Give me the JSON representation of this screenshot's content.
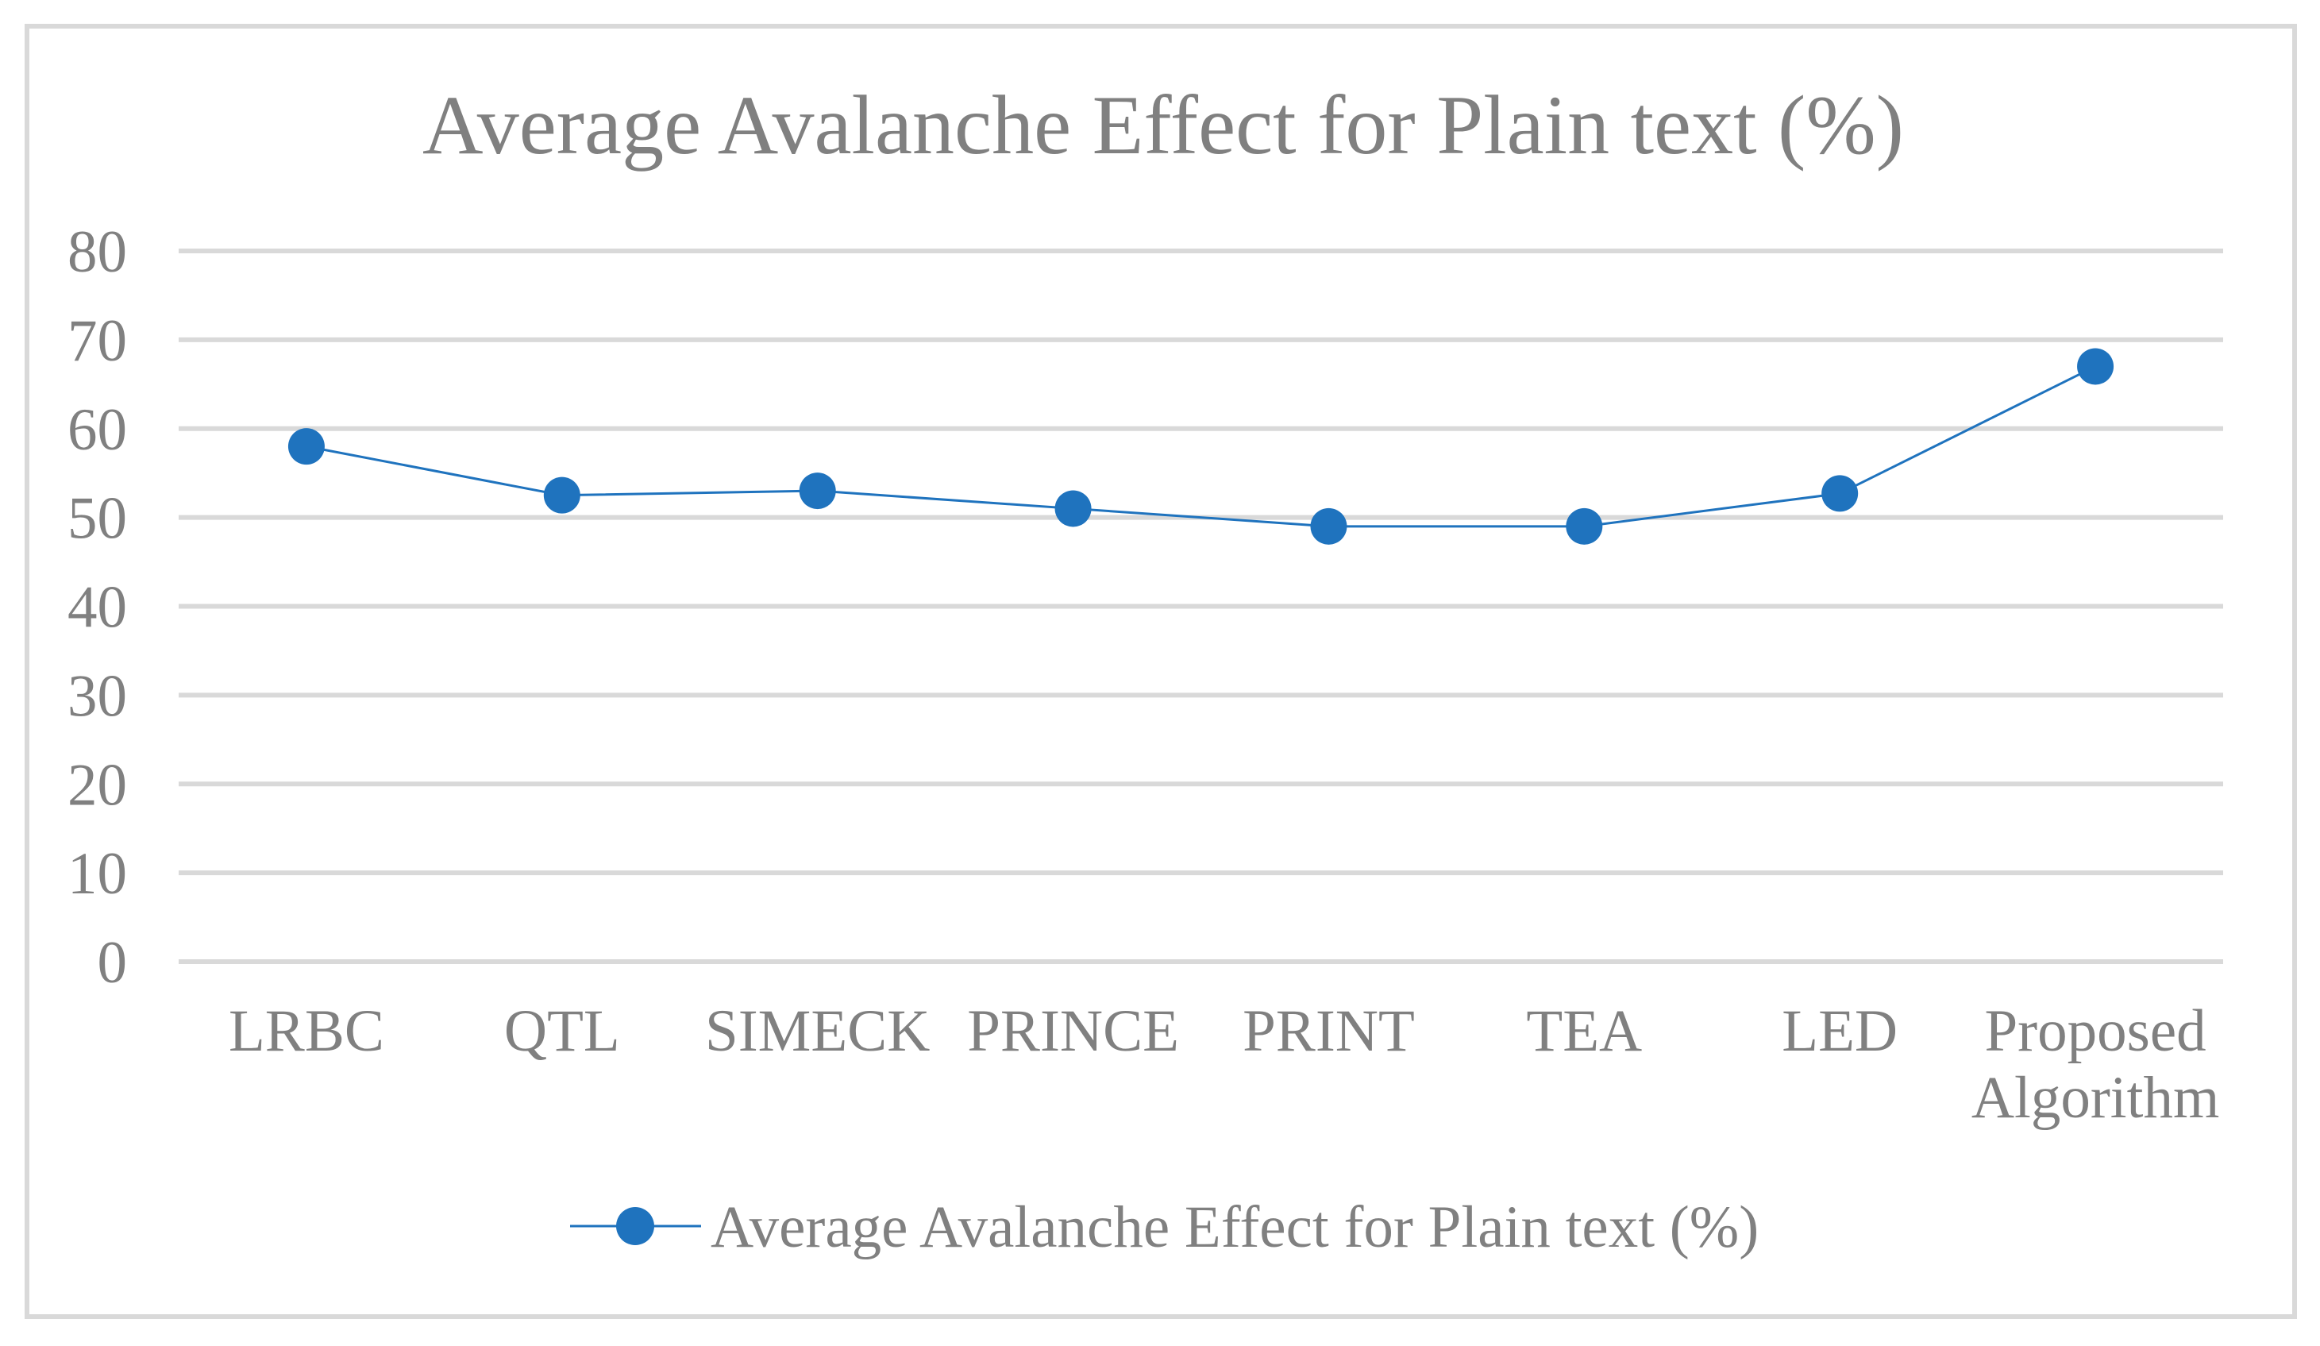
{
  "chart_data": {
    "type": "line",
    "title": "Average Avalanche Effect for Plain text (%)",
    "categories": [
      "LRBC",
      "QTL",
      "SIMECK",
      "PRINCE",
      "PRINT",
      "TEA",
      "LED",
      "Proposed Algorithm"
    ],
    "series": [
      {
        "name": "Average Avalanche Effect for Plain text (%)",
        "values": [
          58,
          52.5,
          53,
          51,
          49,
          49,
          52.7,
          67
        ]
      }
    ],
    "xlabel": "",
    "ylabel": "",
    "ylim": [
      0,
      80
    ],
    "yticks": [
      0,
      10,
      20,
      30,
      40,
      50,
      60,
      70,
      80
    ],
    "grid": "horizontal",
    "legend_position": "bottom",
    "marker": "circle",
    "colors": {
      "series": "#1f73be",
      "gridline": "#d9d9d9",
      "text": "#808080",
      "border": "#d9d9d9",
      "background": "#ffffff"
    }
  }
}
